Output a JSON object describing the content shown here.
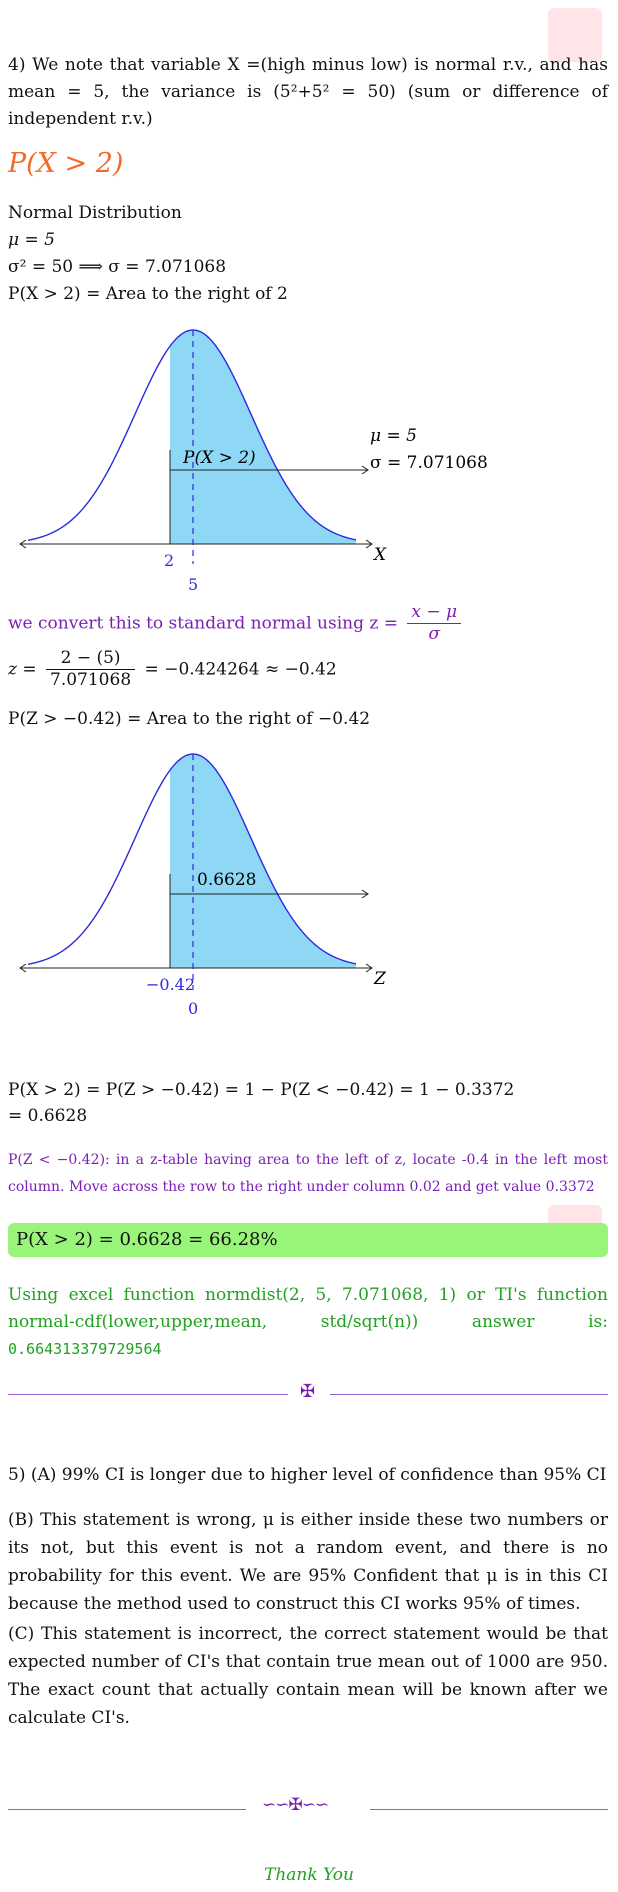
{
  "q4_intro": "4) We note that variable X =(high minus low) is normal r.v., and has mean = 5, the variance is (5²+5² = 50) (sum or difference of independent r.v.)",
  "heading": "P(X > 2)",
  "normal_title": "Normal Distribution",
  "mu_line": "μ = 5",
  "sigma_line": "σ² = 50 ⟹ σ = 7.071068",
  "area_line": "P(X > 2) = Area to the right of 2",
  "graph1": {
    "shaded_label": "P(X > 2)",
    "mu_label": "μ = 5",
    "sigma_label": "σ = 7.071068",
    "tick_left": "2",
    "tick_mean": "5",
    "axis": "X"
  },
  "convert_text": "we convert this to standard normal using z =",
  "convert_num": "x − μ",
  "convert_den": "σ",
  "z_left": "z =",
  "z_num": "2 − (5)",
  "z_den": "7.071068",
  "z_right": "= −0.424264 ≈ −0.42",
  "pz_line": "P(Z > −0.42) = Area to the right of −0.42",
  "graph2": {
    "shaded_label": "0.6628",
    "tick_left": "−0.42",
    "tick_mean": "0",
    "axis": "Z"
  },
  "result_line1": "P(X > 2) = P(Z > −0.42) = 1 − P(Z < −0.42) = 1 − 0.3372",
  "result_line2": "= 0.6628",
  "table_note": "P(Z < −0.42): in a z-table having area to the left of z, locate -0.4 in the left most column. Move across the row to the right under column 0.02 and get value 0.3372",
  "answer": "P(X > 2) = 0.6628 = 66.28%",
  "excel_text": "Using excel function normdist(2, 5, 7.071068, 1) or TI's function normal-cdf(lower,upper,mean, std/sqrt(n)) answer is:",
  "excel_value": "0.664313379729564",
  "q5_a": "5) (A) 99% CI is longer due to higher level of confidence than 95% CI",
  "q5_b": "(B) This statement is wrong, μ is either inside these two numbers or its not, but this event is not a random event, and there is no probability for this event. We are 95% Confident that μ is in this CI because the method used to construct this CI works 95% of times.",
  "q5_c": "(C) This statement is incorrect, the correct statement would be that expected number of CI's that contain true mean out of 1000 are 950. The exact count that actually contain mean will be known after we calculate CI's.",
  "thank_you": "Thank You",
  "colors": {
    "orange": "#f26a2a",
    "purple": "#7a1fb4",
    "green": "#21a121",
    "shade": "#8fd8f5",
    "curve": "#2a2adf",
    "answer_bg": "#99f57a"
  }
}
